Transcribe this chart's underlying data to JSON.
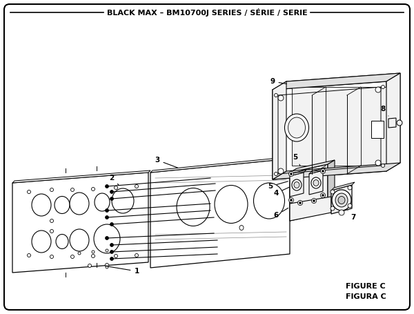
{
  "title": "BLACK MAX – BM10700J SERIES / SÉRIE / SERIE",
  "figure_label": "FIGURE C",
  "figura_label": "FIGURA C",
  "bg_color": "#ffffff",
  "border_color": "#000000",
  "fig_width": 6.0,
  "fig_height": 4.55,
  "dpi": 100
}
